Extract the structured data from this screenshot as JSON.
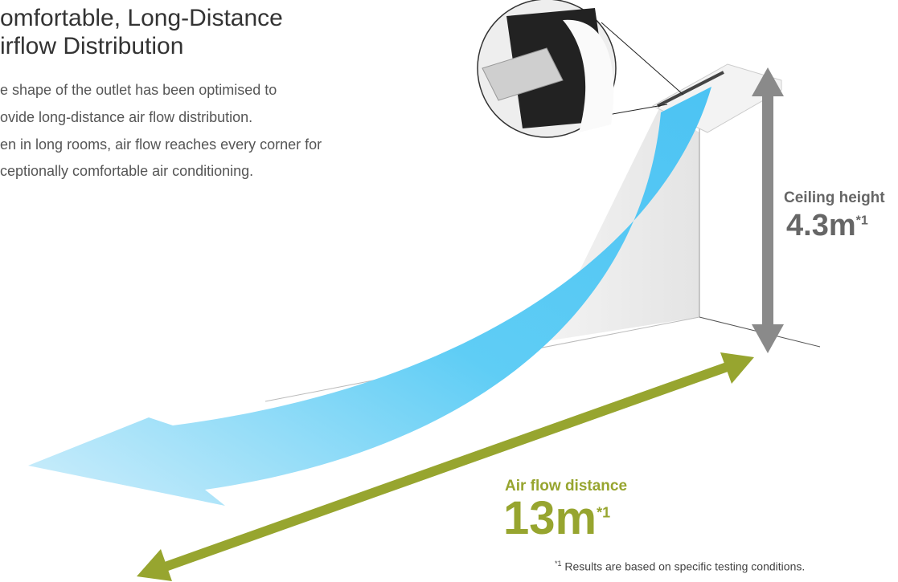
{
  "title": [
    "omfortable, Long-Distance",
    "irflow Distribution"
  ],
  "description": [
    "e shape of the outlet has been optimised to",
    "ovide long-distance air flow distribution.",
    "en in long rooms, air flow reaches every corner for",
    "ceptionally comfortable air conditioning."
  ],
  "ceiling": {
    "label": "Ceiling height",
    "value": "4.3m",
    "note": "*1"
  },
  "distance": {
    "label": "Air flow distance",
    "value": "13m",
    "note": "*1"
  },
  "footnote": {
    "mark": "*1",
    "text": "Results are based on specific testing conditions."
  }
}
